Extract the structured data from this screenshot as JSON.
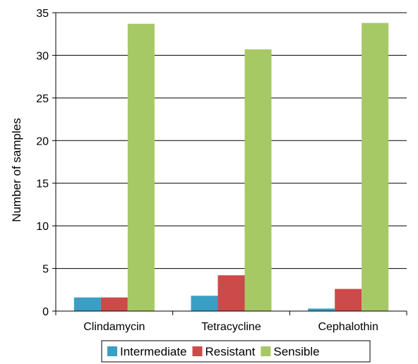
{
  "chart_data": {
    "type": "bar",
    "title": "",
    "xlabel": "",
    "ylabel": "Number of samples",
    "ylim": [
      0,
      35
    ],
    "yticks": [
      0,
      5,
      10,
      15,
      20,
      25,
      30,
      35
    ],
    "grid": true,
    "legend_position": "bottom",
    "categories": [
      "Clindamycin",
      "Tetracycline",
      "Cephalothin"
    ],
    "series": [
      {
        "name": "Intermediate",
        "color": "#3a9fc5",
        "values": [
          1.6,
          1.8,
          0.3
        ]
      },
      {
        "name": "Resistant",
        "color": "#cc4a4a",
        "values": [
          1.6,
          4.2,
          2.6
        ]
      },
      {
        "name": "Sensible",
        "color": "#a6c965",
        "values": [
          33.7,
          30.7,
          33.8
        ]
      }
    ]
  }
}
